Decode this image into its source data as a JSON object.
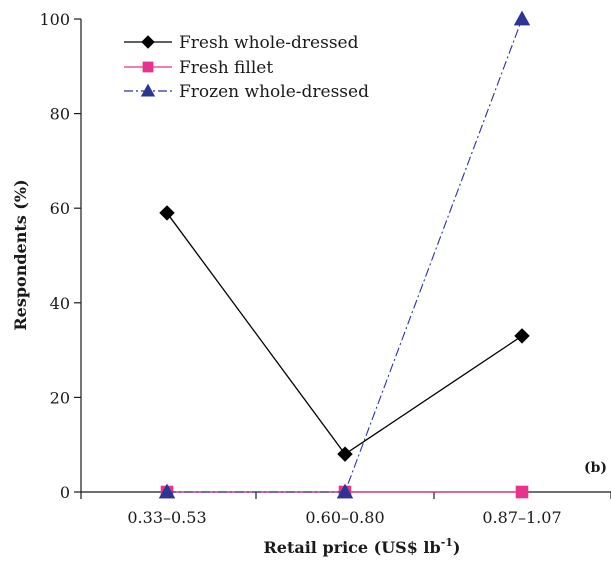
{
  "chart_data": {
    "type": "line",
    "panel_label": "(b)",
    "xlabel": "Retail price (US$ lb",
    "xlabel_sup": "-1",
    "xlabel_end": ")",
    "ylabel": "Respondents (%)",
    "categories": [
      "0.33–0.53",
      "0.60–0.80",
      "0.87–1.07"
    ],
    "ylim": [
      0,
      100
    ],
    "yticks": [
      0,
      20,
      40,
      60,
      80,
      100
    ],
    "grid": false,
    "legend_position": "top-left",
    "series": [
      {
        "name": "Fresh whole-dressed",
        "values": [
          59,
          8,
          33
        ],
        "color": "#000000",
        "marker": "diamond",
        "line": "solid"
      },
      {
        "name": "Fresh fillet",
        "values": [
          0,
          0,
          0
        ],
        "color": "#e8338e",
        "marker": "square",
        "line": "solid"
      },
      {
        "name": "Frozen whole-dressed",
        "values": [
          0,
          0,
          100
        ],
        "color": "#2b3592",
        "marker": "triangle",
        "line": "dashdot"
      }
    ]
  }
}
